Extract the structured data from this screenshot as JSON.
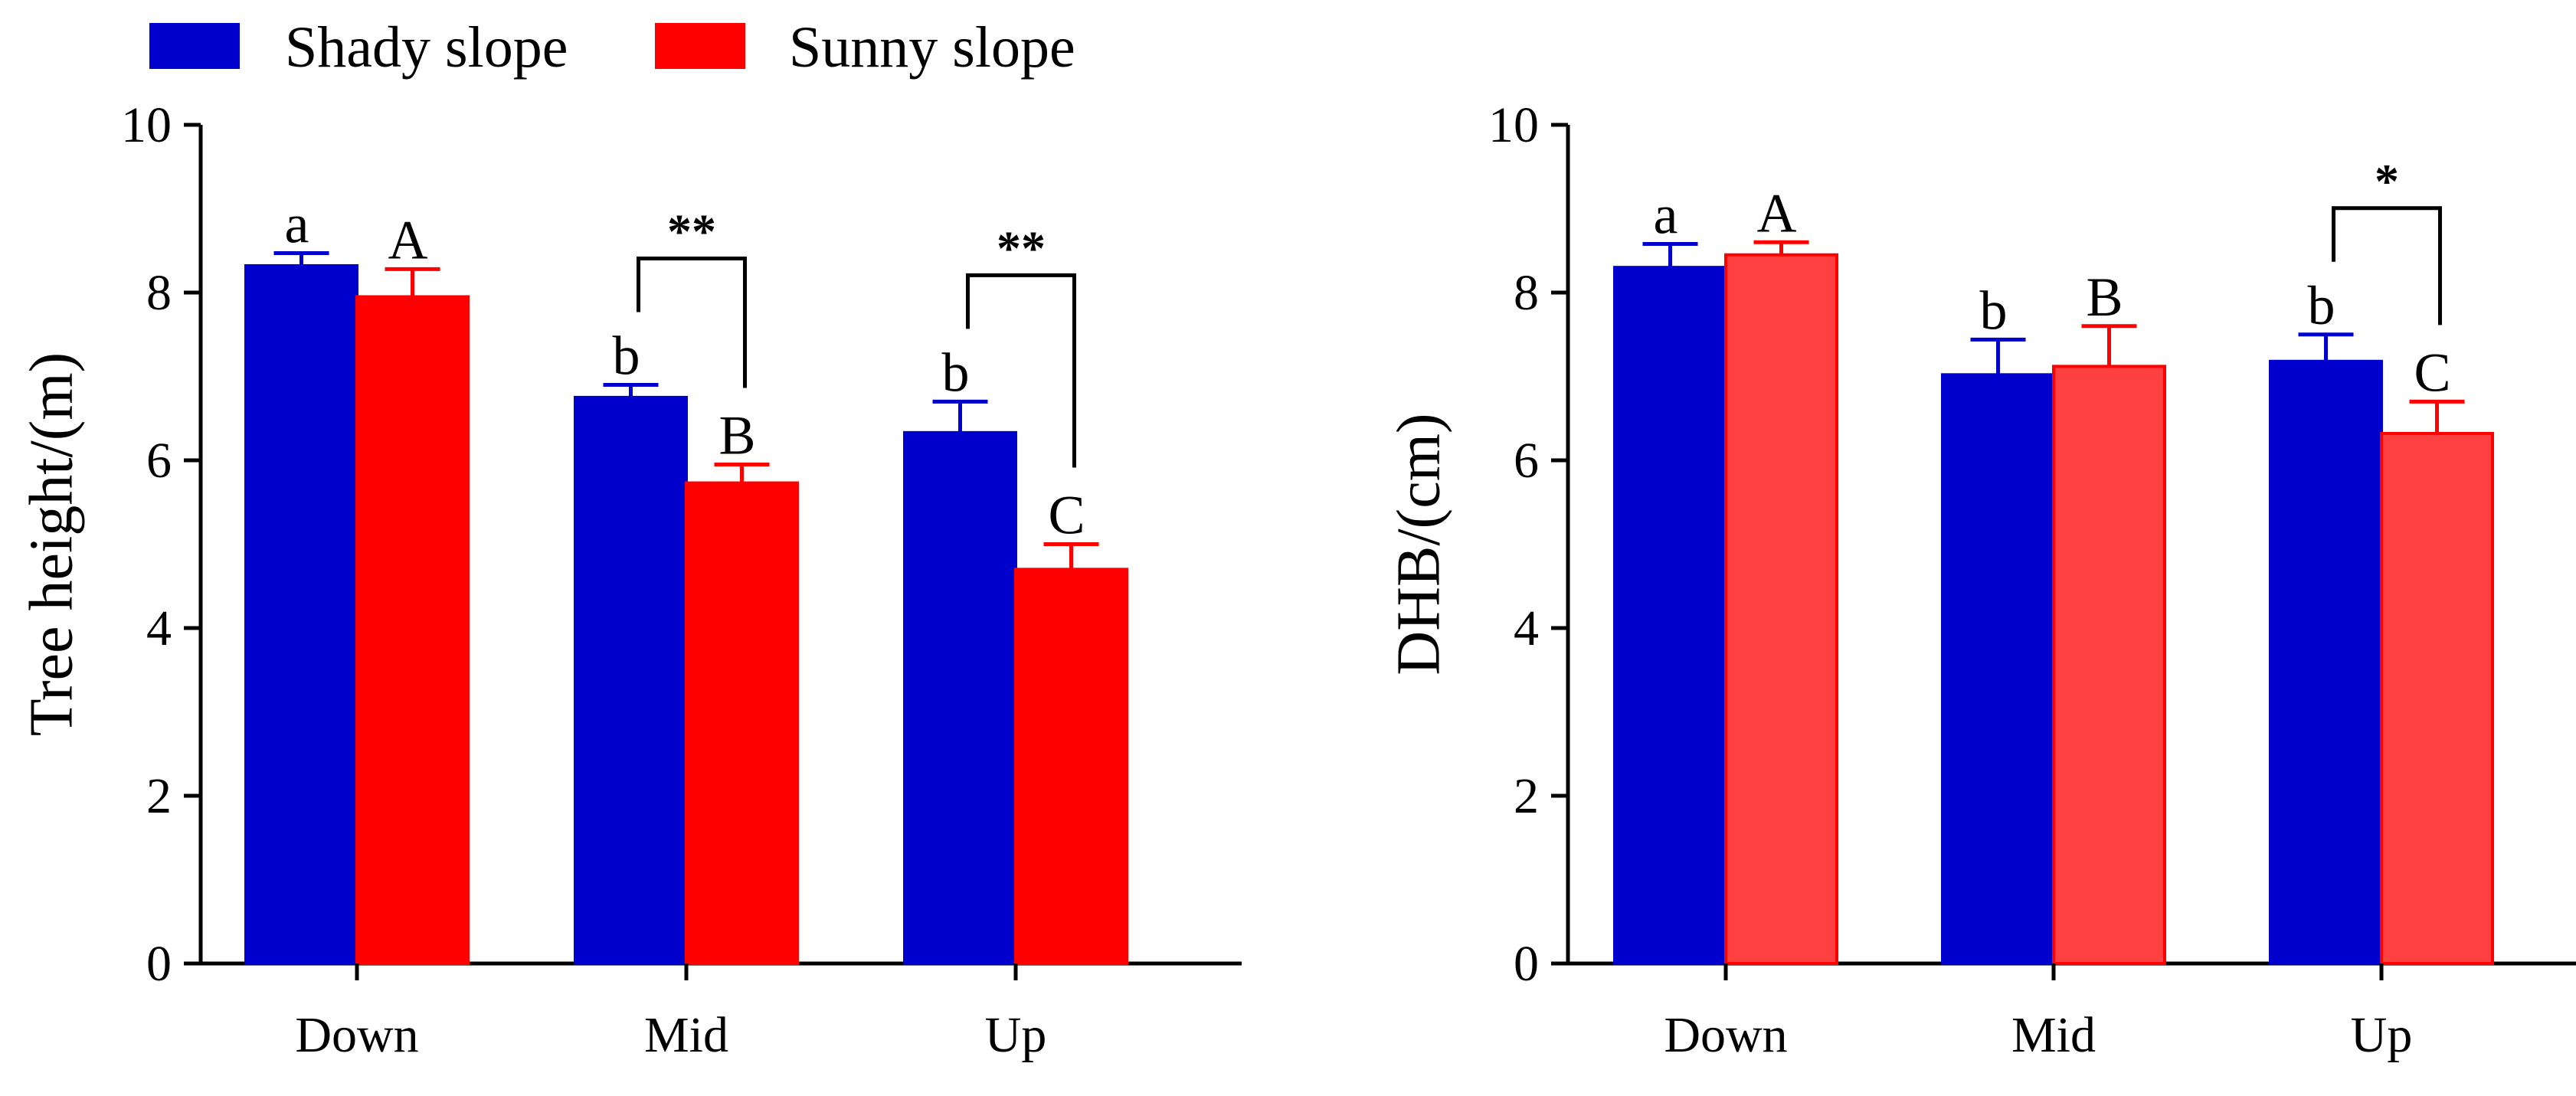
{
  "legend": {
    "items": [
      {
        "name": "Shady slope",
        "color": "#0000CC"
      },
      {
        "name": "Sunny slope",
        "color": "#FF0000"
      }
    ]
  },
  "colors": {
    "shady": "#0000CC",
    "sunny_left": "#FF0000",
    "sunny_right_fill": "#FF4040",
    "sunny_right_edge": "#FF0000",
    "shady_errorbar": "#0000CC",
    "axis": "#000000"
  },
  "chart_data": [
    {
      "type": "bar",
      "title": "",
      "xlabel": "",
      "ylabel": "Tree height/(m)",
      "ylim": [
        0,
        10
      ],
      "yticks": [
        "0",
        "2",
        "4",
        "6",
        "8",
        "10"
      ],
      "categories": [
        "Down",
        "Mid",
        "Up"
      ],
      "series": [
        {
          "name": "Shady slope",
          "values": [
            8.32,
            6.75,
            6.33
          ],
          "errors": [
            0.15,
            0.15,
            0.37
          ],
          "letters": [
            "a",
            "b",
            "b"
          ]
        },
        {
          "name": "Sunny slope",
          "values": [
            7.95,
            5.73,
            4.7
          ],
          "errors": [
            0.33,
            0.22,
            0.3
          ],
          "letters": [
            "A",
            "B",
            "C"
          ]
        }
      ],
      "significance": [
        {
          "category": "Mid",
          "label": "**"
        },
        {
          "category": "Up",
          "label": "**"
        }
      ]
    },
    {
      "type": "bar",
      "title": "",
      "xlabel": "",
      "ylabel": "DHB/(cm)",
      "ylim": [
        0,
        10
      ],
      "yticks": [
        "0",
        "2",
        "4",
        "6",
        "8",
        "10"
      ],
      "categories": [
        "Down",
        "Mid",
        "Up"
      ],
      "series": [
        {
          "name": "Shady slope",
          "values": [
            8.3,
            7.02,
            7.18
          ],
          "errors": [
            0.28,
            0.42,
            0.32
          ],
          "letters": [
            "a",
            "b",
            "b"
          ]
        },
        {
          "name": "Sunny slope",
          "values": [
            8.45,
            7.12,
            6.32
          ],
          "errors": [
            0.15,
            0.48,
            0.38
          ],
          "letters": [
            "A",
            "B",
            "C"
          ]
        }
      ],
      "significance": [
        {
          "category": "Up",
          "label": "*"
        }
      ]
    }
  ]
}
